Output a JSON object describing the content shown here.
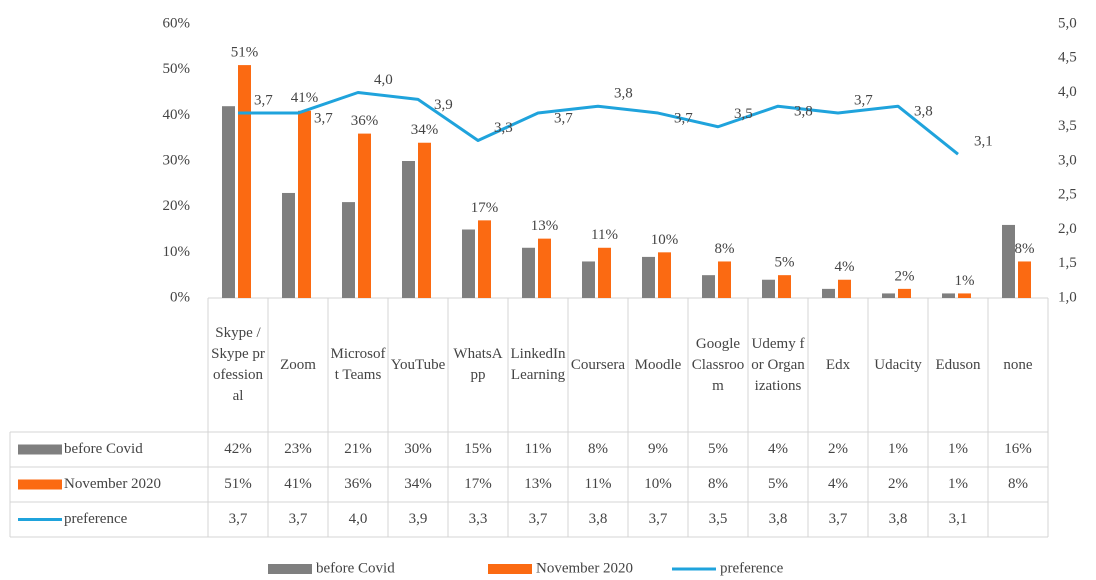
{
  "chart_data": {
    "type": "bar",
    "categories": [
      "Skype / Skype professional",
      "Zoom",
      "Microsoft Teams",
      "YouTube",
      "WhatsApp",
      "LinkedIn Learning",
      "Coursera",
      "Moodle",
      "Google Classroom",
      "Udemy for Organizations",
      "Edx",
      "Udacity",
      "Eduson",
      "none"
    ],
    "series": [
      {
        "name": "before Covid",
        "color": "#7f7f7f",
        "data_labels": false,
        "values": [
          42,
          23,
          21,
          30,
          15,
          11,
          8,
          9,
          5,
          4,
          2,
          1,
          1,
          16
        ],
        "value_labels": [
          "42%",
          "23%",
          "21%",
          "30%",
          "15%",
          "11%",
          "8%",
          "9%",
          "5%",
          "4%",
          "2%",
          "1%",
          "1%",
          "16%"
        ]
      },
      {
        "name": "November 2020",
        "color": "#fb6a12",
        "data_labels": true,
        "values": [
          51,
          41,
          36,
          34,
          17,
          13,
          11,
          10,
          8,
          5,
          4,
          2,
          1,
          8
        ],
        "value_labels": [
          "51%",
          "41%",
          "36%",
          "34%",
          "17%",
          "13%",
          "11%",
          "10%",
          "8%",
          "5%",
          "4%",
          "2%",
          "1%",
          "8%"
        ]
      },
      {
        "name": "preference",
        "color": "#1fa3dc",
        "type": "line",
        "axis": "y2",
        "data_labels": true,
        "values": [
          3.7,
          3.7,
          4.0,
          3.9,
          3.3,
          3.7,
          3.8,
          3.7,
          3.5,
          3.8,
          3.7,
          3.8,
          3.1,
          null
        ],
        "value_labels": [
          "3,7",
          "3,7",
          "4,0",
          "3,9",
          "3,3",
          "3,7",
          "3,8",
          "3,7",
          "3,5",
          "3,8",
          "3,7",
          "3,8",
          "3,1",
          null
        ]
      }
    ],
    "ylim": [
      0,
      60
    ],
    "yticks": [
      {
        "value": 0,
        "label": "0%"
      },
      {
        "value": 10,
        "label": "10%"
      },
      {
        "value": 20,
        "label": "20%"
      },
      {
        "value": 30,
        "label": "30%"
      },
      {
        "value": 40,
        "label": "40%"
      },
      {
        "value": 50,
        "label": "50%"
      },
      {
        "value": 60,
        "label": "60%"
      }
    ],
    "y2lim": [
      1,
      5
    ],
    "y2ticks": [
      {
        "value": 1,
        "label": "1,0"
      },
      {
        "value": 1.5,
        "label": "1,5"
      },
      {
        "value": 2,
        "label": "2,0"
      },
      {
        "value": 2.5,
        "label": "2,5"
      },
      {
        "value": 3,
        "label": "3,0"
      },
      {
        "value": 3.5,
        "label": "3,5"
      },
      {
        "value": 4,
        "label": "4,0"
      },
      {
        "value": 4.5,
        "label": "4,5"
      },
      {
        "value": 5,
        "label": "5,0"
      }
    ],
    "legend": "bottom"
  }
}
